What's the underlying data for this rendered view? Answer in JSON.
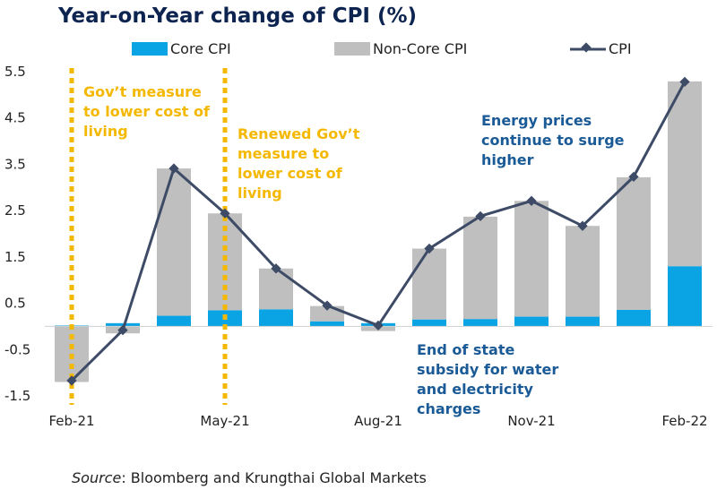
{
  "chart_data": {
    "type": "bar",
    "title": "Year-on-Year change of CPI (%)",
    "categories": [
      "Feb-21",
      "Mar-21",
      "Apr-21",
      "May-21",
      "Jun-21",
      "Jul-21",
      "Aug-21",
      "Sep-21",
      "Oct-21",
      "Nov-21",
      "Dec-21",
      "Jan-22",
      "Feb-22"
    ],
    "x_tick_labels": [
      "Feb-21",
      "",
      "",
      "May-21",
      "",
      "",
      "Aug-21",
      "",
      "",
      "Nov-21",
      "",
      "",
      "Feb-22"
    ],
    "ylim": [
      -1.5,
      5.5
    ],
    "y_ticks": [
      "-1.5",
      "-0.5",
      "0.5",
      "1.5",
      "2.5",
      "3.5",
      "4.5",
      "5.5"
    ],
    "series": [
      {
        "name": "Core CPI",
        "kind": "stacked-bar",
        "color": "#0aa3e3",
        "values": [
          0.02,
          0.07,
          0.23,
          0.35,
          0.37,
          0.11,
          0.07,
          0.15,
          0.16,
          0.21,
          0.21,
          0.36,
          1.3
        ]
      },
      {
        "name": "Non-Core CPI",
        "kind": "stacked-bar",
        "color": "#bfbfbf",
        "values": [
          -1.2,
          -0.15,
          3.18,
          2.09,
          0.88,
          0.33,
          -0.1,
          1.53,
          2.21,
          2.5,
          1.96,
          2.86,
          3.99
        ]
      },
      {
        "name": "CPI",
        "kind": "line",
        "color": "#3d4b66",
        "values": [
          -1.17,
          -0.08,
          3.41,
          2.44,
          1.25,
          0.45,
          0.02,
          1.68,
          2.38,
          2.71,
          2.17,
          3.23,
          5.28
        ]
      }
    ],
    "grid": false,
    "legend": "top"
  },
  "vlines": [
    {
      "category": "Feb-21",
      "color": "#f5b800"
    },
    {
      "category": "May-21",
      "color": "#f5b800"
    }
  ],
  "annotations": [
    {
      "lines": [
        "Gov’t measure",
        "to lower cost of",
        "living"
      ],
      "style": "ann-yellow"
    },
    {
      "lines": [
        "Renewed Gov’t",
        "measure to",
        "lower cost of",
        "living"
      ],
      "style": "ann-yellow"
    },
    {
      "lines": [
        "Energy prices",
        "continue to surge",
        "higher"
      ],
      "style": "ann-blue"
    },
    {
      "lines": [
        "End of state",
        "subsidy for water",
        "and electricity",
        "charges"
      ],
      "style": "ann-blue"
    }
  ],
  "source": {
    "label": "Source",
    "text": ": Bloomberg and Krungthai Global Markets"
  }
}
